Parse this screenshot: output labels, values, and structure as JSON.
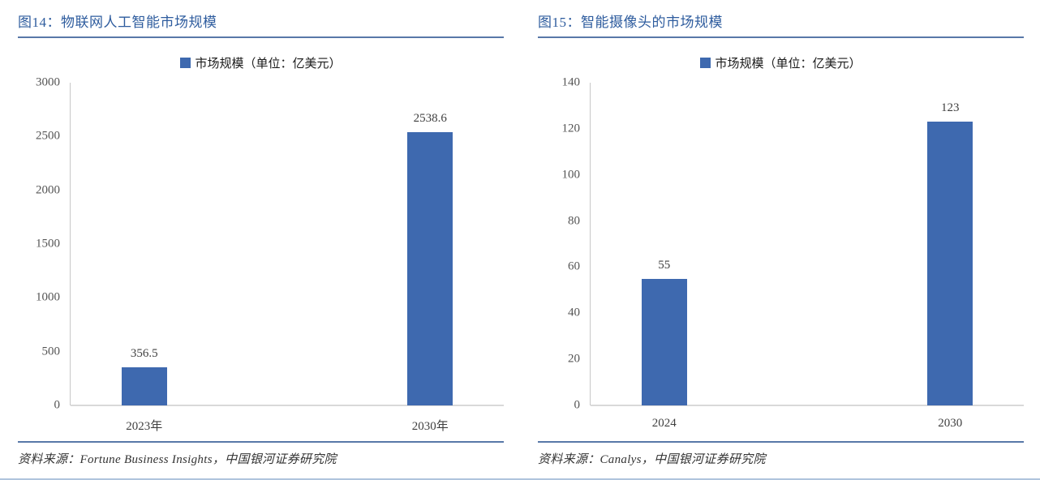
{
  "colors": {
    "bar": "#3E69AF",
    "title_text": "#2E5C9E",
    "header_rule": "#5878A8",
    "divider_rule": "#5878A8",
    "bottom_rule": "#AFC4DD",
    "axis_line": "#C8C8C8",
    "baseline": "#D9D9D9",
    "tick_text": "#555555",
    "label_text": "#3f3f3f"
  },
  "chart_data": [
    {
      "type": "bar",
      "title": "图14：物联网人工智能市场规模",
      "legend": "市场规模（单位：亿美元）",
      "legend_position": "top-center",
      "categories": [
        "2023年",
        "2030年"
      ],
      "values": [
        356.5,
        2538.6
      ],
      "data_labels": [
        "356.5",
        "2538.6"
      ],
      "ylim": [
        0,
        3000
      ],
      "yticks": [
        0,
        500,
        1000,
        1500,
        2000,
        2500,
        3000
      ],
      "grid": false,
      "source": "资料来源：Fortune Business Insights，中国银河证券研究院"
    },
    {
      "type": "bar",
      "title": "图15：智能摄像头的市场规模",
      "legend": "市场规模（单位：亿美元）",
      "legend_position": "top-center",
      "categories": [
        "2024",
        "2030"
      ],
      "values": [
        55,
        123
      ],
      "data_labels": [
        "55",
        "123"
      ],
      "ylim": [
        0,
        140
      ],
      "yticks": [
        0,
        20,
        40,
        60,
        80,
        100,
        120,
        140
      ],
      "grid": false,
      "source": "资料来源：Canalys，中国银河证券研究院"
    }
  ]
}
